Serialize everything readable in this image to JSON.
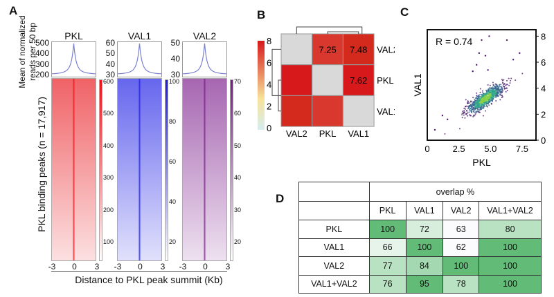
{
  "panel_labels": {
    "a": "A",
    "b": "B",
    "c": "C",
    "d": "D"
  },
  "panel_a": {
    "ylabel_top_line1": "Mean of normalized",
    "ylabel_top_line2": "reads per 50 bp",
    "ylabel_heatmap": "PKL binding peaks (n = 17,917)",
    "xlabel": "Distance to PKL peak summit (Kb)",
    "x_ticks": [
      "-3",
      "0",
      "3"
    ],
    "tracks": [
      {
        "name": "PKL",
        "color": "#e8141a",
        "profile_ticks": [
          "500",
          "400",
          "300",
          "200"
        ],
        "colorbar_ticks": [
          "600",
          "500",
          "400",
          "300",
          "200",
          "100"
        ]
      },
      {
        "name": "VAL1",
        "color": "#1a1ae6",
        "profile_ticks": [
          "60",
          "50",
          "40",
          "30"
        ],
        "colorbar_ticks": [
          "100",
          "80",
          "60",
          "40",
          "20"
        ]
      },
      {
        "name": "VAL2",
        "color": "#7a1a8a",
        "profile_ticks": [
          "50",
          "40",
          "30"
        ],
        "colorbar_ticks": [
          "70",
          "60",
          "50",
          "40",
          "30",
          "20"
        ]
      }
    ]
  },
  "chart_data": [
    {
      "type": "heatmap",
      "panel": "B",
      "columns": [
        "VAL2",
        "PKL",
        "VAL1"
      ],
      "rows": [
        "VAL2",
        "PKL",
        "VAL1"
      ],
      "cells": [
        [
          {
            "value": null,
            "label": ""
          },
          {
            "value": 7.25,
            "label": "7.25"
          },
          {
            "value": 7.48,
            "label": "7.48"
          }
        ],
        [
          {
            "value": 7.6,
            "label": ""
          },
          {
            "value": null,
            "label": ""
          },
          {
            "value": 7.62,
            "label": "7.62"
          }
        ],
        [
          {
            "value": 7.5,
            "label": ""
          },
          {
            "value": 7.3,
            "label": ""
          },
          {
            "value": null,
            "label": ""
          }
        ]
      ],
      "colorbar_ticks": [
        "8",
        "6",
        "4",
        "2",
        "0"
      ],
      "colorbar_range": [
        0,
        8
      ],
      "colors": {
        "high": "#d7191c",
        "mid": "#f7e29a",
        "low": "#d6eef0",
        "diagonal": "#d9d9d9"
      }
    },
    {
      "type": "scatter",
      "panel": "C",
      "annotation": "R = 0.74",
      "xlabel": "PKL",
      "ylabel": "VAL1",
      "x_ticks": [
        "0",
        "2.5",
        "5.0",
        "7.5"
      ],
      "y_ticks": [
        "0",
        "2",
        "4",
        "6",
        "8"
      ],
      "xlim": [
        0,
        8.6
      ],
      "ylim": [
        0,
        8.5
      ],
      "y_axis_side": "right"
    },
    {
      "type": "table",
      "panel": "D",
      "group_header": "overlap  %",
      "columns": [
        "PKL",
        "VAL1",
        "VAL2",
        "VAL1+VAL2"
      ],
      "rows": [
        {
          "label": "PKL",
          "values": [
            "100",
            "72",
            "63",
            "80"
          ]
        },
        {
          "label": "VAL1",
          "values": [
            "66",
            "100",
            "62",
            "100"
          ]
        },
        {
          "label": "VAL2",
          "values": [
            "77",
            "84",
            "100",
            "100"
          ]
        },
        {
          "label": "VAL1+VAL2",
          "values": [
            "76",
            "95",
            "78",
            "100"
          ]
        }
      ]
    }
  ]
}
